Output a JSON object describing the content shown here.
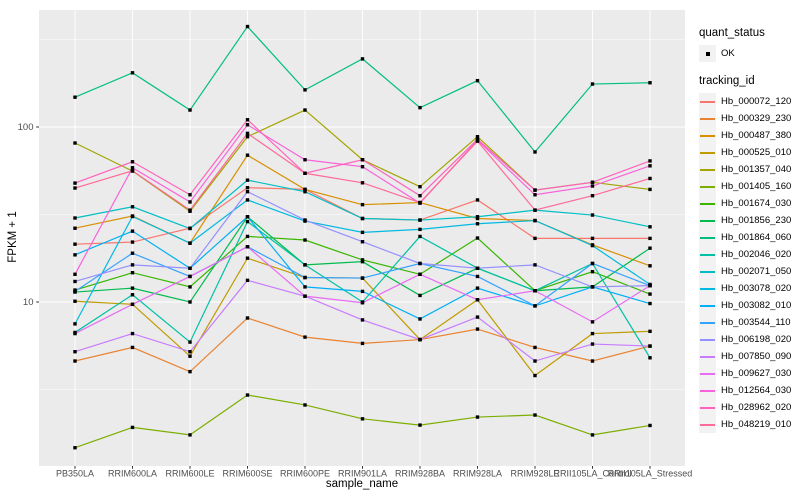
{
  "chart_data": {
    "type": "line",
    "title": "",
    "xlabel": "sample_name",
    "ylabel": "FPKM + 1",
    "x_type": "categorical",
    "y_scale": "log10",
    "ylim": [
      1.15,
      470
    ],
    "y_major_ticks": [
      10,
      100
    ],
    "y_minor_gridlines": [
      3.1623,
      31.623,
      316.23
    ],
    "grid": "white major+minor on gray panel",
    "legend_position": "right",
    "marker": "small black square at every point (quant_status OK)",
    "categories": [
      "PB350LA",
      "RRIM600LA",
      "RRIM600LE",
      "RRIM600SE",
      "RRIM600PE",
      "RRIM901LA",
      "RRIM928BA",
      "RRIM928LA",
      "RRIM928LE",
      "RRII105LA_Control",
      "RRII105LA_Stressed"
    ],
    "series": [
      {
        "name": "Hb_000072_120",
        "color": "#F8766D",
        "values": [
          21.4,
          22,
          26.4,
          45,
          44,
          30,
          29.4,
          38.3,
          23.1,
          23.1,
          23.1
        ]
      },
      {
        "name": "Hb_000329_230",
        "color": "#EA8331",
        "values": [
          4.6,
          5.5,
          4.0,
          8.1,
          6.3,
          5.8,
          6.1,
          7.0,
          5.5,
          4.6,
          5.6
        ]
      },
      {
        "name": "Hb_000487_380",
        "color": "#D89000",
        "values": [
          26.4,
          31,
          21.7,
          69,
          44,
          36,
          37,
          30,
          29.2,
          21.2,
          16.1
        ]
      },
      {
        "name": "Hb_000525_010",
        "color": "#C09B00",
        "values": [
          10.1,
          9.7,
          4.9,
          17.8,
          13.8,
          13.7,
          6.1,
          10.3,
          3.8,
          6.6,
          6.8
        ]
      },
      {
        "name": "Hb_001357_040",
        "color": "#A3A500",
        "values": [
          81,
          56,
          33,
          88,
          125,
          65,
          45.6,
          88,
          43.6,
          48.3,
          44
        ]
      },
      {
        "name": "Hb_001405_160",
        "color": "#7CAE00",
        "values": [
          1.47,
          1.92,
          1.74,
          2.94,
          2.58,
          2.15,
          1.98,
          2.2,
          2.26,
          1.74,
          1.97
        ]
      },
      {
        "name": "Hb_001674_030",
        "color": "#39B600",
        "values": [
          11.7,
          14.7,
          12.2,
          23.7,
          22.6,
          17.4,
          14.4,
          23.2,
          11.6,
          14.9,
          11.1
        ]
      },
      {
        "name": "Hb_001856_230",
        "color": "#00BB4E",
        "values": [
          11.4,
          12.0,
          10.0,
          30.7,
          16.3,
          17.0,
          10.9,
          15.6,
          11.6,
          12.2,
          20.3
        ]
      },
      {
        "name": "Hb_001864_060",
        "color": "#00BF7D",
        "values": [
          148,
          204,
          125,
          375,
          163,
          245,
          129,
          184,
          72,
          176,
          179
        ]
      },
      {
        "name": "Hb_002046_020",
        "color": "#00C1A3",
        "values": [
          6.7,
          11.0,
          5.9,
          28.8,
          16.3,
          10.0,
          23.7,
          15.6,
          11.6,
          16.6,
          4.8
        ]
      },
      {
        "name": "Hb_002071_050",
        "color": "#00BFC4",
        "values": [
          30.2,
          35.0,
          26.3,
          49.7,
          42.7,
          30.0,
          29.4,
          30.7,
          33.5,
          31.4,
          26.9
        ]
      },
      {
        "name": "Hb_003078_020",
        "color": "#00BAE0",
        "values": [
          7.5,
          30.8,
          21.7,
          38.3,
          29.0,
          25.0,
          26.0,
          28.0,
          29.2,
          21.0,
          12.6
        ]
      },
      {
        "name": "Hb_003082_010",
        "color": "#00B0F6",
        "values": [
          18.6,
          25.4,
          15.6,
          30.7,
          12.2,
          11.5,
          8.0,
          12.0,
          9.5,
          12.2,
          9.8
        ]
      },
      {
        "name": "Hb_003544_110",
        "color": "#35A2FF",
        "values": [
          11.5,
          19.0,
          14.0,
          20.7,
          13.8,
          13.7,
          16.6,
          14.0,
          9.5,
          16.6,
          12.4
        ]
      },
      {
        "name": "Hb_006198_020",
        "color": "#9590FF",
        "values": [
          13.1,
          16.3,
          15.6,
          42.7,
          29.4,
          22.1,
          16.6,
          15.6,
          16.3,
          12.2,
          12.4
        ]
      },
      {
        "name": "Hb_007850_090",
        "color": "#C77CFF",
        "values": [
          5.2,
          6.6,
          5.2,
          13.3,
          10.8,
          7.9,
          6.1,
          8.2,
          4.6,
          5.75,
          5.6
        ]
      },
      {
        "name": "Hb_009627_030",
        "color": "#E76BF3",
        "values": [
          6.6,
          9.7,
          14.0,
          20.7,
          10.8,
          9.9,
          14.4,
          10.3,
          11.6,
          7.7,
          12.4
        ]
      },
      {
        "name": "Hb_012564_030",
        "color": "#FA62DB",
        "values": [
          14.4,
          58.5,
          37.3,
          103,
          65,
          59.3,
          36.7,
          84,
          41,
          46,
          60
        ]
      },
      {
        "name": "Hb_028962_020",
        "color": "#FF62BC",
        "values": [
          47.8,
          63.3,
          41.0,
          110,
          54.4,
          65,
          40.5,
          85,
          43.6,
          48.3,
          64
        ]
      },
      {
        "name": "Hb_048219_010",
        "color": "#FF6A98",
        "values": [
          44.8,
          56.2,
          33.5,
          92,
          54.4,
          48,
          37,
          83,
          33.5,
          40.5,
          50.8
        ]
      }
    ]
  },
  "legend": {
    "quant_status_title": "quant_status",
    "quant_status_items": [
      {
        "label": "OK",
        "marker": "black-point"
      }
    ],
    "tracking_id_title": "tracking_id"
  },
  "style": {
    "panel_bg": "#EBEBEB",
    "grid_color": "#FFFFFF",
    "page_bg": "#FFFFFF",
    "tick_label_color": "#4D4D4D",
    "axis_title_color": "#000000",
    "legend_key_bg": "#F2F2F2",
    "marker_color": "#000000"
  }
}
